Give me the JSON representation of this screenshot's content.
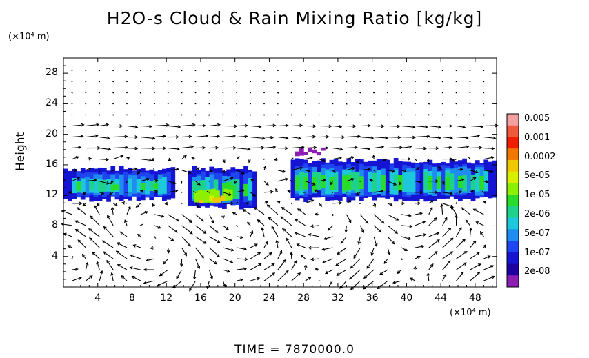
{
  "chart_data": {
    "type": "heatmap",
    "title": "H2O-s Cloud & Rain Mixing Ratio [kg/kg]",
    "ylabel": "Height",
    "y_unit": "(×10⁴ m)",
    "x_unit": "(×10⁴ m)",
    "x_ticks": [
      "4",
      "8",
      "12",
      "16",
      "20",
      "24",
      "28",
      "32",
      "36",
      "40",
      "44",
      "48"
    ],
    "y_ticks": [
      "4",
      "8",
      "12",
      "16",
      "20",
      "24",
      "28"
    ],
    "xlim": [
      0,
      50.5
    ],
    "ylim": [
      0,
      30
    ],
    "grid": false,
    "colorbar": {
      "labels": [
        "0.005",
        "0.001",
        "0.0002",
        "5e-05",
        "1e-05",
        "2e-06",
        "5e-07",
        "1e-07",
        "2e-08"
      ],
      "colors": [
        "#f4a0a0",
        "#f05a3c",
        "#f01e00",
        "#f07800",
        "#f0c800",
        "#d8f000",
        "#8cf000",
        "#2adc2a",
        "#1ed28c",
        "#1ec8dc",
        "#1e8cf0",
        "#1e46f0",
        "#1414d2",
        "#1e00a0",
        "#8c1eb4"
      ]
    },
    "cloud_layers": [
      {
        "x_range": [
          0,
          13
        ],
        "y_range": [
          11.5,
          15.5
        ],
        "level": "1e-05"
      },
      {
        "x_range": [
          14.5,
          22.5
        ],
        "y_range": [
          10.5,
          15.5
        ],
        "level": "0.0002"
      },
      {
        "x_range": [
          26.5,
          50.5
        ],
        "y_range": [
          11.5,
          16.5
        ],
        "level": "5e-05"
      },
      {
        "x_range": [
          27,
          30.5
        ],
        "y_range": [
          17.5,
          18
        ],
        "level": "2e-08"
      }
    ],
    "wind_field": "velocity vectors"
  },
  "footer": {
    "time_label": "TIME = 7870000.0"
  }
}
